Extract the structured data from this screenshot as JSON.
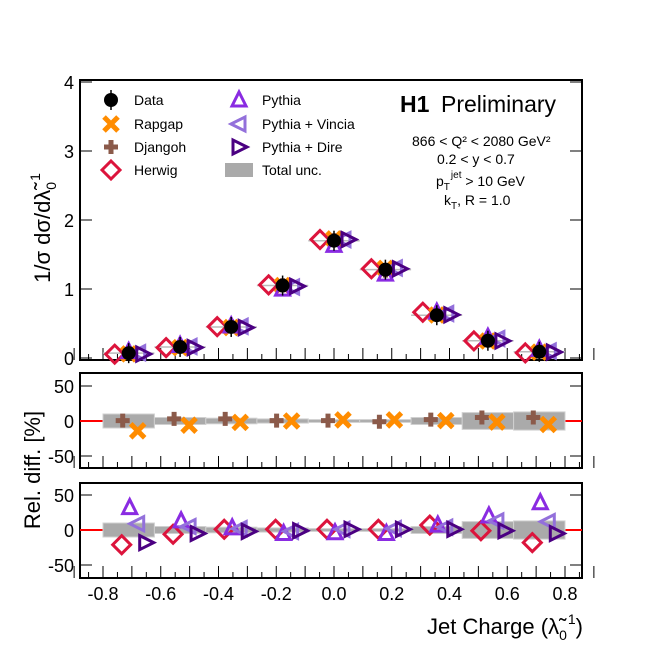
{
  "chart_data": [
    {
      "type": "scatter",
      "panel": "distribution",
      "ylabel": "1/σ dσ/dλ̃",
      "ylabel_super": "1",
      "ylabel_sub": "0",
      "ylim": [
        0,
        4
      ],
      "yticks": [
        "0",
        "1",
        "2",
        "3",
        "4"
      ],
      "x": [
        -0.711,
        -0.533,
        -0.356,
        -0.178,
        0.0,
        0.178,
        0.356,
        0.533,
        0.711
      ],
      "bin_edges": [
        -0.8,
        -0.622,
        -0.444,
        -0.267,
        -0.089,
        0.089,
        0.267,
        0.444,
        0.622,
        0.8
      ],
      "data": [
        0.07,
        0.16,
        0.45,
        1.05,
        1.7,
        1.28,
        0.62,
        0.25,
        0.09
      ],
      "legend": [
        {
          "name": "Data",
          "marker": "filled-circle",
          "color": "#000000"
        },
        {
          "name": "Rapgap",
          "marker": "x-cross",
          "color": "#ff8c00"
        },
        {
          "name": "Djangoh",
          "marker": "plus",
          "color": "#8b5a4a"
        },
        {
          "name": "Herwig",
          "marker": "diamond",
          "color": "#dc143c"
        },
        {
          "name": "Pythia",
          "marker": "triangle-up",
          "color": "#8a2be2"
        },
        {
          "name": "Pythia + Vincia",
          "marker": "triangle-left",
          "color": "#9370db"
        },
        {
          "name": "Pythia + Dire",
          "marker": "triangle-right",
          "color": "#4b0082"
        },
        {
          "name": "Total unc.",
          "marker": "box",
          "color": "#aaaaaa"
        }
      ],
      "title": "H1",
      "title2": "Preliminary",
      "annotations": {
        "q2": "866 < Q² < 2080 GeV²",
        "y": "0.2 < y < 0.7",
        "pt": "p_T^jet > 10 GeV",
        "pt_main": "p",
        "pt_sub": "T",
        "pt_sup": "jet",
        "pt_rest": " > 10 GeV",
        "kt": "k",
        "kt_sub": "T",
        "kt_rest": ", R = 1.0"
      }
    },
    {
      "type": "scatter",
      "panel": "ratio-djangoh-rapgap",
      "ylabel": "Rel. diff. [%]",
      "ylim": [
        -70,
        70
      ],
      "yticks": [
        "-50",
        "0",
        "50"
      ],
      "series": [
        {
          "name": "Djangoh",
          "values": [
            0.5,
            3,
            3,
            0.5,
            0.5,
            -1,
            2,
            5,
            5
          ]
        },
        {
          "name": "Rapgap",
          "values": [
            -14,
            -6,
            -2,
            0,
            1.5,
            1.5,
            0.5,
            -1.5,
            -5
          ]
        }
      ],
      "total_unc": [
        10,
        5,
        4,
        3,
        2,
        2,
        5,
        12,
        13
      ]
    },
    {
      "type": "scatter",
      "panel": "ratio-pythia-herwig",
      "ylim": [
        -70,
        70
      ],
      "yticks": [
        "-50",
        "0",
        "50"
      ],
      "xlabel": "Jet Charge (λ̃",
      "xlabel_super": "1",
      "xlabel_sub": "0",
      "xlabel_end": ")",
      "xlim": [
        -0.9,
        0.9
      ],
      "xticks": [
        "-0.8",
        "-0.6",
        "-0.4",
        "-0.2",
        "0.0",
        "0.2",
        "0.4",
        "0.6",
        "0.8"
      ],
      "series": [
        {
          "name": "Herwig",
          "values": [
            -21,
            -6,
            1,
            1,
            1,
            1,
            7,
            -1,
            -18
          ]
        },
        {
          "name": "Pythia",
          "values": [
            32,
            13,
            3,
            -5,
            -4,
            -5,
            7,
            20,
            39
          ]
        },
        {
          "name": "Pythia + Vincia",
          "values": [
            9,
            5,
            2,
            -2,
            1,
            2,
            4,
            13,
            12
          ]
        },
        {
          "name": "Pythia + Dire",
          "values": [
            -18,
            -5,
            -2,
            -1,
            1,
            1,
            1,
            -1,
            -5
          ]
        }
      ],
      "total_unc": [
        10,
        5,
        4,
        3,
        2,
        2,
        5,
        12,
        13
      ]
    }
  ]
}
